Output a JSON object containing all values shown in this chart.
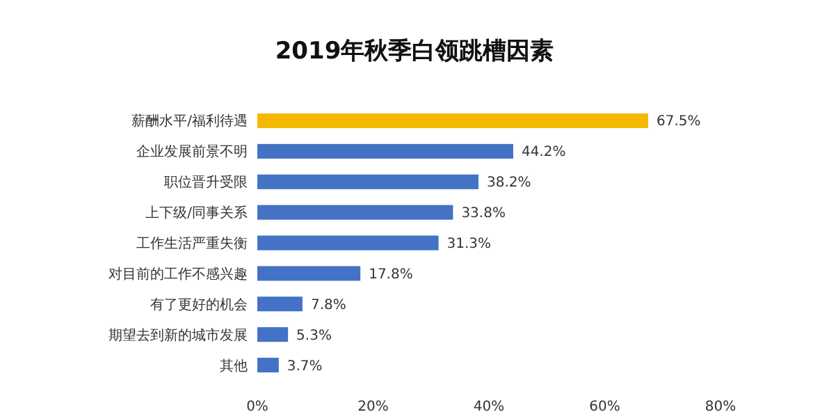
{
  "chart_data": {
    "type": "bar",
    "orientation": "horizontal",
    "title": "2019年秋季白领跳槽因素",
    "categories": [
      "薪酬水平/福利待遇",
      "企业发展前景不明",
      "职位晋升受限",
      "上下级/同事关系",
      "工作生活严重失衡",
      "对目前的工作不感兴趣",
      "有了更好的机会",
      "期望去到新的城市发展",
      "其他"
    ],
    "values": [
      67.5,
      44.2,
      38.2,
      33.8,
      31.3,
      17.8,
      7.8,
      5.3,
      3.7
    ],
    "colors": [
      "#f5b800",
      "#4472c4",
      "#4472c4",
      "#4472c4",
      "#4472c4",
      "#4472c4",
      "#4472c4",
      "#4472c4",
      "#4472c4"
    ],
    "value_labels": [
      "67.5%",
      "44.2%",
      "38.2%",
      "33.8%",
      "31.3%",
      "17.8%",
      "7.8%",
      "5.3%",
      "3.7%"
    ],
    "xlim": [
      0,
      80
    ],
    "xticks": [
      {
        "value": 0,
        "label": "0%"
      },
      {
        "value": 20,
        "label": "20%"
      },
      {
        "value": 40,
        "label": "40%"
      },
      {
        "value": 60,
        "label": "60%"
      },
      {
        "value": 80,
        "label": "80%"
      }
    ],
    "grid": false
  }
}
